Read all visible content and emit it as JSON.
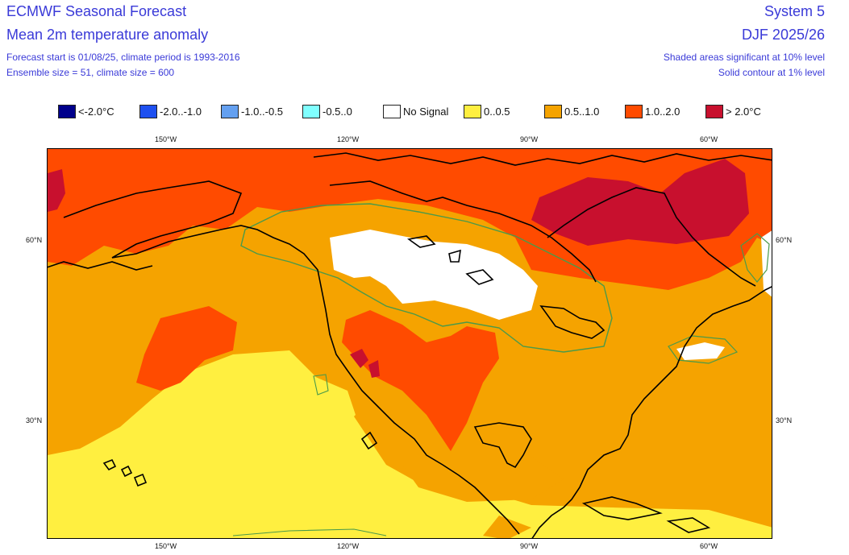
{
  "header": {
    "title": "ECMWF Seasonal Forecast",
    "subtitle": "Mean 2m temperature anomaly",
    "line1": "Forecast start is 01/08/25, climate period is 1993-2016",
    "line2": "Ensemble size = 51, climate size = 600",
    "system": "System 5",
    "season": "DJF 2025/26",
    "note1": "Shaded areas significant at 10% level",
    "note2": "Solid contour at 1% level"
  },
  "legend": [
    {
      "label": "<-2.0°C",
      "color": "#00008b"
    },
    {
      "label": "-2.0..-1.0",
      "color": "#1e50f0"
    },
    {
      "label": "-1.0..-0.5",
      "color": "#64a0f0"
    },
    {
      "label": "-0.5..0",
      "color": "#80ffff"
    },
    {
      "label": "No Signal",
      "color": "#ffffff"
    },
    {
      "label": "0..0.5",
      "color": "#ffef40"
    },
    {
      "label": "0.5..1.0",
      "color": "#f5a300"
    },
    {
      "label": "1.0..2.0",
      "color": "#ff4b00"
    },
    {
      "label": "> 2.0°C",
      "color": "#c8102e"
    }
  ],
  "axes": {
    "top_ticks": [
      "150°W",
      "120°W",
      "90°W",
      "60°W"
    ],
    "bottom_ticks": [
      "150°W",
      "120°W",
      "90°W",
      "60°W"
    ],
    "left_ticks": [
      "60°N",
      "30°N"
    ],
    "right_ticks": [
      "60°N",
      "30°N"
    ]
  },
  "colors": {
    "text": "#3a3ad8",
    "coast": "#000000",
    "sig_contour": "#4a9a4a"
  }
}
